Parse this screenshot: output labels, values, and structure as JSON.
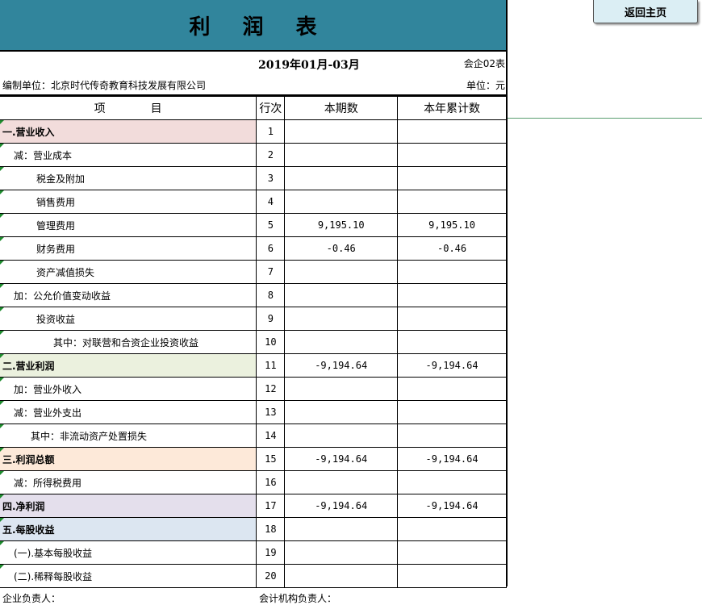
{
  "title": "利润表",
  "home_button": "返回主页",
  "period": "2019年01月-03月",
  "form_no": "会企02表",
  "company": "编制单位：北京时代传奇教育科技发展有限公司",
  "unit": "单位：元",
  "headers": [
    "项　　　　目",
    "行次",
    "本期数",
    "本年累计数"
  ],
  "rows": [
    {
      "item": "一.营业收入",
      "no": "1",
      "cur": "",
      "ytd": "",
      "bold": true,
      "bg": "#f2dcdb",
      "indent": 0
    },
    {
      "item": "减：营业成本",
      "no": "2",
      "cur": "",
      "ytd": "",
      "indent": 14
    },
    {
      "item": "税金及附加",
      "no": "3",
      "cur": "",
      "ytd": "",
      "indent": 42
    },
    {
      "item": "销售费用",
      "no": "4",
      "cur": "",
      "ytd": "",
      "indent": 42
    },
    {
      "item": "管理费用",
      "no": "5",
      "cur": "9,195.10",
      "ytd": "9,195.10",
      "indent": 42
    },
    {
      "item": "财务费用",
      "no": "6",
      "cur": "-0.46",
      "ytd": "-0.46",
      "indent": 42
    },
    {
      "item": "资产减值损失",
      "no": "7",
      "cur": "",
      "ytd": "",
      "indent": 42
    },
    {
      "item": "加：公允价值变动收益",
      "no": "8",
      "cur": "",
      "ytd": "",
      "indent": 14
    },
    {
      "item": "投资收益",
      "no": "9",
      "cur": "",
      "ytd": "",
      "indent": 42
    },
    {
      "item": "其中：对联营和合资企业投资收益",
      "no": "10",
      "cur": "",
      "ytd": "",
      "indent": 63
    },
    {
      "item": "二.营业利润",
      "no": "11",
      "cur": "-9,194.64",
      "ytd": "-9,194.64",
      "bold": true,
      "bg": "#ebf1de",
      "indent": 0
    },
    {
      "item": "加：营业外收入",
      "no": "12",
      "cur": "",
      "ytd": "",
      "indent": 14
    },
    {
      "item": "减：营业外支出",
      "no": "13",
      "cur": "",
      "ytd": "",
      "indent": 14
    },
    {
      "item": "其中：非流动资产处置损失",
      "no": "14",
      "cur": "",
      "ytd": "",
      "indent": 35
    },
    {
      "item": "三.利润总额",
      "no": "15",
      "cur": "-9,194.64",
      "ytd": "-9,194.64",
      "bold": true,
      "bg": "#fde9d9",
      "indent": 0
    },
    {
      "item": "减：所得税费用",
      "no": "16",
      "cur": "",
      "ytd": "",
      "indent": 14
    },
    {
      "item": "四.净利润",
      "no": "17",
      "cur": "-9,194.64",
      "ytd": "-9,194.64",
      "bold": true,
      "bg": "#e4dfec",
      "indent": 0
    },
    {
      "item": "五.每股收益",
      "no": "18",
      "cur": "",
      "ytd": "",
      "bold": true,
      "bg": "#dce6f1",
      "indent": 0
    },
    {
      "item": "(一).基本每股收益",
      "no": "19",
      "cur": "",
      "ytd": "",
      "indent": 14
    },
    {
      "item": "(二).稀释每股收益",
      "no": "20",
      "cur": "",
      "ytd": "",
      "indent": 14
    }
  ],
  "footer": {
    "head": "企业负责人：",
    "accounting_head": "会计机构负责人："
  },
  "colors": {
    "title_bg": "#31859c",
    "button_bg": "#dbeef4"
  }
}
